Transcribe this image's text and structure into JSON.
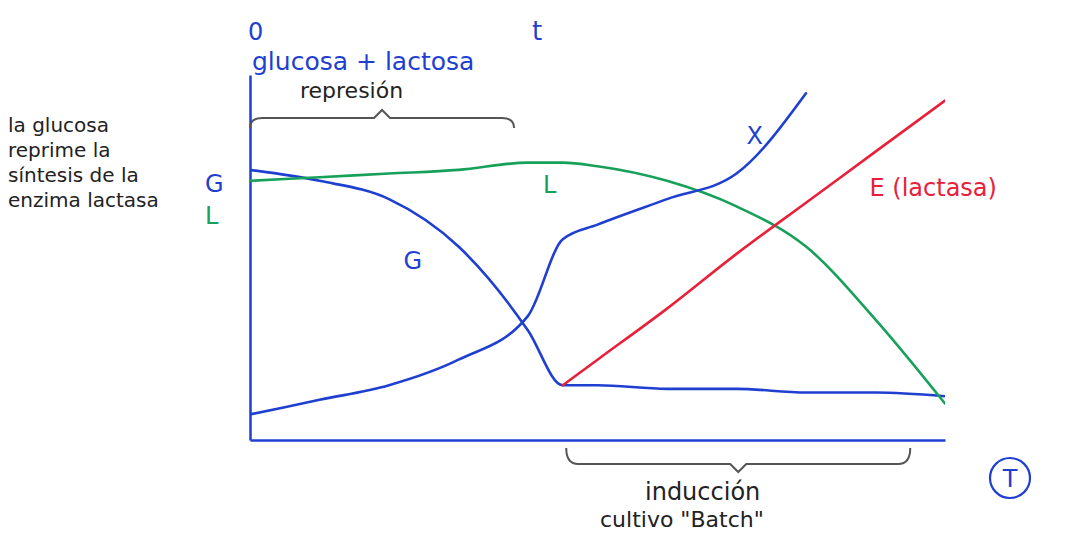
{
  "chart_data": {
    "type": "line",
    "xlabel": "T",
    "annotations": [
      "0",
      "t",
      "glucosa + lactosa",
      "represión",
      "la glucosa reprime la síntesis de la enzima lactasa",
      "inducción",
      "cultivo \"Batch\""
    ],
    "x": [
      0,
      1,
      2,
      3,
      4,
      4.5,
      5,
      6,
      7,
      8,
      9,
      10
    ],
    "series": [
      {
        "name": "G",
        "color": "#1f3fd0",
        "values": [
          7.4,
          7.1,
          6.6,
          5.3,
          3.0,
          1.5,
          1.5,
          1.4,
          1.4,
          1.3,
          1.3,
          1.2
        ]
      },
      {
        "name": "L",
        "color": "#17a05a",
        "values": [
          7.1,
          7.2,
          7.3,
          7.4,
          7.6,
          7.6,
          7.5,
          7.1,
          6.4,
          5.3,
          3.3,
          1.0
        ]
      },
      {
        "name": "X",
        "color": "#1f3fd0",
        "values": [
          0.7,
          1.1,
          1.5,
          2.2,
          3.4,
          5.5,
          5.9,
          6.6,
          7.3,
          9.5,
          null,
          null
        ]
      },
      {
        "name": "E (lactasa)",
        "color": "#e8203a",
        "values": [
          null,
          null,
          null,
          null,
          null,
          1.5,
          2.2,
          3.6,
          5.1,
          6.5,
          7.9,
          9.3
        ]
      }
    ],
    "xlim": [
      0,
      10
    ],
    "ylim": [
      0,
      10
    ],
    "tick_labels": false,
    "grid": false
  }
}
